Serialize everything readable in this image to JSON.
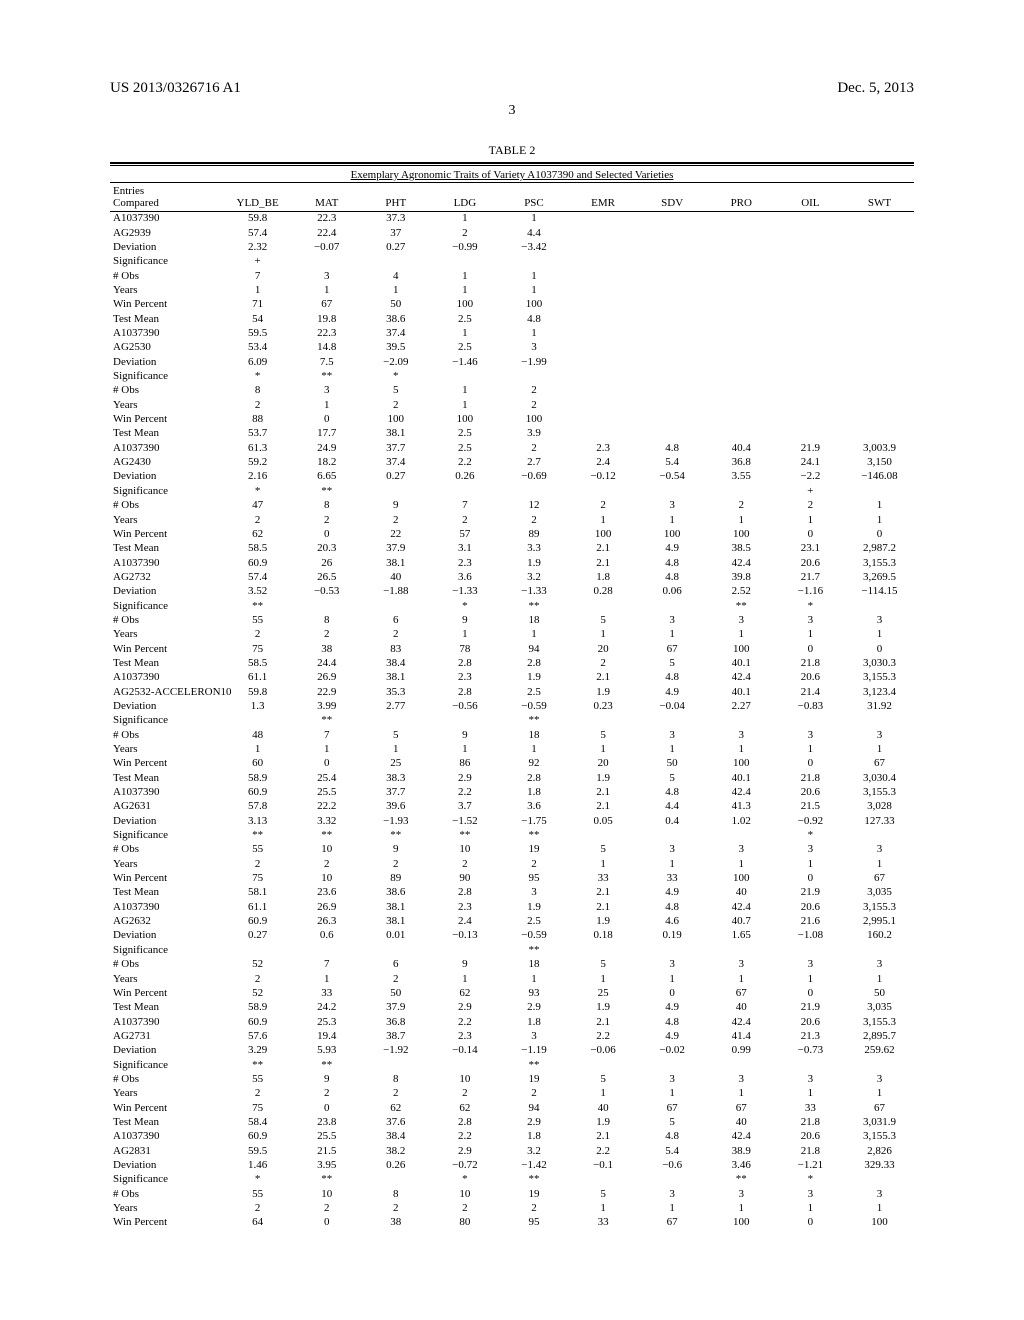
{
  "header": {
    "left": "US 2013/0326716 A1",
    "right": "Dec. 5, 2013",
    "page_number": "3"
  },
  "table": {
    "title": "TABLE 2",
    "subtitle": "Exemplary Agronomic Traits of Variety A1037390 and Selected Varieties",
    "columns": [
      "Entries Compared",
      "YLD_BE",
      "MAT",
      "PHT",
      "LDG",
      "PSC",
      "EMR",
      "SDV",
      "PRO",
      "OIL",
      "SWT"
    ],
    "rows": [
      [
        "A1037390",
        "59.8",
        "22.3",
        "37.3",
        "1",
        "1",
        "",
        "",
        "",
        "",
        ""
      ],
      [
        "AG2939",
        "57.4",
        "22.4",
        "37",
        "2",
        "4.4",
        "",
        "",
        "",
        "",
        ""
      ],
      [
        "Deviation",
        "2.32",
        "−0.07",
        "0.27",
        "−0.99",
        "−3.42",
        "",
        "",
        "",
        "",
        ""
      ],
      [
        "Significance",
        "+",
        "",
        "",
        "",
        "",
        "",
        "",
        "",
        "",
        ""
      ],
      [
        "# Obs",
        "7",
        "3",
        "4",
        "1",
        "1",
        "",
        "",
        "",
        "",
        ""
      ],
      [
        "Years",
        "1",
        "1",
        "1",
        "1",
        "1",
        "",
        "",
        "",
        "",
        ""
      ],
      [
        "Win Percent",
        "71",
        "67",
        "50",
        "100",
        "100",
        "",
        "",
        "",
        "",
        ""
      ],
      [
        "Test Mean",
        "54",
        "19.8",
        "38.6",
        "2.5",
        "4.8",
        "",
        "",
        "",
        "",
        ""
      ],
      [
        "A1037390",
        "59.5",
        "22.3",
        "37.4",
        "1",
        "1",
        "",
        "",
        "",
        "",
        ""
      ],
      [
        "AG2530",
        "53.4",
        "14.8",
        "39.5",
        "2.5",
        "3",
        "",
        "",
        "",
        "",
        ""
      ],
      [
        "Deviation",
        "6.09",
        "7.5",
        "−2.09",
        "−1.46",
        "−1.99",
        "",
        "",
        "",
        "",
        ""
      ],
      [
        "Significance",
        "*",
        "**",
        "*",
        "",
        "",
        "",
        "",
        "",
        "",
        ""
      ],
      [
        "# Obs",
        "8",
        "3",
        "5",
        "1",
        "2",
        "",
        "",
        "",
        "",
        ""
      ],
      [
        "Years",
        "2",
        "1",
        "2",
        "1",
        "2",
        "",
        "",
        "",
        "",
        ""
      ],
      [
        "Win Percent",
        "88",
        "0",
        "100",
        "100",
        "100",
        "",
        "",
        "",
        "",
        ""
      ],
      [
        "Test Mean",
        "53.7",
        "17.7",
        "38.1",
        "2.5",
        "3.9",
        "",
        "",
        "",
        "",
        ""
      ],
      [
        "A1037390",
        "61.3",
        "24.9",
        "37.7",
        "2.5",
        "2",
        "2.3",
        "4.8",
        "40.4",
        "21.9",
        "3,003.9"
      ],
      [
        "AG2430",
        "59.2",
        "18.2",
        "37.4",
        "2.2",
        "2.7",
        "2.4",
        "5.4",
        "36.8",
        "24.1",
        "3,150"
      ],
      [
        "Deviation",
        "2.16",
        "6.65",
        "0.27",
        "0.26",
        "−0.69",
        "−0.12",
        "−0.54",
        "3.55",
        "−2.2",
        "−146.08"
      ],
      [
        "Significance",
        "*",
        "**",
        "",
        "",
        "",
        "",
        "",
        "",
        "+",
        ""
      ],
      [
        "# Obs",
        "47",
        "8",
        "9",
        "7",
        "12",
        "2",
        "3",
        "2",
        "2",
        "1"
      ],
      [
        "Years",
        "2",
        "2",
        "2",
        "2",
        "2",
        "1",
        "1",
        "1",
        "1",
        "1"
      ],
      [
        "Win Percent",
        "62",
        "0",
        "22",
        "57",
        "89",
        "100",
        "100",
        "100",
        "0",
        "0"
      ],
      [
        "Test Mean",
        "58.5",
        "20.3",
        "37.9",
        "3.1",
        "3.3",
        "2.1",
        "4.9",
        "38.5",
        "23.1",
        "2,987.2"
      ],
      [
        "A1037390",
        "60.9",
        "26",
        "38.1",
        "2.3",
        "1.9",
        "2.1",
        "4.8",
        "42.4",
        "20.6",
        "3,155.3"
      ],
      [
        "AG2732",
        "57.4",
        "26.5",
        "40",
        "3.6",
        "3.2",
        "1.8",
        "4.8",
        "39.8",
        "21.7",
        "3,269.5"
      ],
      [
        "Deviation",
        "3.52",
        "−0.53",
        "−1.88",
        "−1.33",
        "−1.33",
        "0.28",
        "0.06",
        "2.52",
        "−1.16",
        "−114.15"
      ],
      [
        "Significance",
        "**",
        "",
        "",
        "*",
        "**",
        "",
        "",
        "**",
        "*",
        ""
      ],
      [
        "# Obs",
        "55",
        "8",
        "6",
        "9",
        "18",
        "5",
        "3",
        "3",
        "3",
        "3"
      ],
      [
        "Years",
        "2",
        "2",
        "2",
        "1",
        "1",
        "1",
        "1",
        "1",
        "1",
        "1"
      ],
      [
        "Win Percent",
        "75",
        "38",
        "83",
        "78",
        "94",
        "20",
        "67",
        "100",
        "0",
        "0"
      ],
      [
        "Test Mean",
        "58.5",
        "24.4",
        "38.4",
        "2.8",
        "2.8",
        "2",
        "5",
        "40.1",
        "21.8",
        "3,030.3"
      ],
      [
        "A1037390",
        "61.1",
        "26.9",
        "38.1",
        "2.3",
        "1.9",
        "2.1",
        "4.8",
        "42.4",
        "20.6",
        "3,155.3"
      ],
      [
        "AG2532-ACCELERON10",
        "59.8",
        "22.9",
        "35.3",
        "2.8",
        "2.5",
        "1.9",
        "4.9",
        "40.1",
        "21.4",
        "3,123.4"
      ],
      [
        "Deviation",
        "1.3",
        "3.99",
        "2.77",
        "−0.56",
        "−0.59",
        "0.23",
        "−0.04",
        "2.27",
        "−0.83",
        "31.92"
      ],
      [
        "Significance",
        "",
        "**",
        "",
        "",
        "**",
        "",
        "",
        "",
        "",
        ""
      ],
      [
        "# Obs",
        "48",
        "7",
        "5",
        "9",
        "18",
        "5",
        "3",
        "3",
        "3",
        "3"
      ],
      [
        "Years",
        "1",
        "1",
        "1",
        "1",
        "1",
        "1",
        "1",
        "1",
        "1",
        "1"
      ],
      [
        "Win Percent",
        "60",
        "0",
        "25",
        "86",
        "92",
        "20",
        "50",
        "100",
        "0",
        "67"
      ],
      [
        "Test Mean",
        "58.9",
        "25.4",
        "38.3",
        "2.9",
        "2.8",
        "1.9",
        "5",
        "40.1",
        "21.8",
        "3,030.4"
      ],
      [
        "A1037390",
        "60.9",
        "25.5",
        "37.7",
        "2.2",
        "1.8",
        "2.1",
        "4.8",
        "42.4",
        "20.6",
        "3,155.3"
      ],
      [
        "AG2631",
        "57.8",
        "22.2",
        "39.6",
        "3.7",
        "3.6",
        "2.1",
        "4.4",
        "41.3",
        "21.5",
        "3,028"
      ],
      [
        "Deviation",
        "3.13",
        "3.32",
        "−1.93",
        "−1.52",
        "−1.75",
        "0.05",
        "0.4",
        "1.02",
        "−0.92",
        "127.33"
      ],
      [
        "Significance",
        "**",
        "**",
        "**",
        "**",
        "**",
        "",
        "",
        "",
        "*",
        ""
      ],
      [
        "# Obs",
        "55",
        "10",
        "9",
        "10",
        "19",
        "5",
        "3",
        "3",
        "3",
        "3"
      ],
      [
        "Years",
        "2",
        "2",
        "2",
        "2",
        "2",
        "1",
        "1",
        "1",
        "1",
        "1"
      ],
      [
        "Win Percent",
        "75",
        "10",
        "89",
        "90",
        "95",
        "33",
        "33",
        "100",
        "0",
        "67"
      ],
      [
        "Test Mean",
        "58.1",
        "23.6",
        "38.6",
        "2.8",
        "3",
        "2.1",
        "4.9",
        "40",
        "21.9",
        "3,035"
      ],
      [
        "A1037390",
        "61.1",
        "26.9",
        "38.1",
        "2.3",
        "1.9",
        "2.1",
        "4.8",
        "42.4",
        "20.6",
        "3,155.3"
      ],
      [
        "AG2632",
        "60.9",
        "26.3",
        "38.1",
        "2.4",
        "2.5",
        "1.9",
        "4.6",
        "40.7",
        "21.6",
        "2,995.1"
      ],
      [
        "Deviation",
        "0.27",
        "0.6",
        "0.01",
        "−0.13",
        "−0.59",
        "0.18",
        "0.19",
        "1.65",
        "−1.08",
        "160.2"
      ],
      [
        "Significance",
        "",
        "",
        "",
        "",
        "**",
        "",
        "",
        "",
        "",
        ""
      ],
      [
        "# Obs",
        "52",
        "7",
        "6",
        "9",
        "18",
        "5",
        "3",
        "3",
        "3",
        "3"
      ],
      [
        "Years",
        "2",
        "1",
        "2",
        "1",
        "1",
        "1",
        "1",
        "1",
        "1",
        "1"
      ],
      [
        "Win Percent",
        "52",
        "33",
        "50",
        "62",
        "93",
        "25",
        "0",
        "67",
        "0",
        "50"
      ],
      [
        "Test Mean",
        "58.9",
        "24.2",
        "37.9",
        "2.9",
        "2.9",
        "1.9",
        "4.9",
        "40",
        "21.9",
        "3,035"
      ],
      [
        "A1037390",
        "60.9",
        "25.3",
        "36.8",
        "2.2",
        "1.8",
        "2.1",
        "4.8",
        "42.4",
        "20.6",
        "3,155.3"
      ],
      [
        "AG2731",
        "57.6",
        "19.4",
        "38.7",
        "2.3",
        "3",
        "2.2",
        "4.9",
        "41.4",
        "21.3",
        "2,895.7"
      ],
      [
        "Deviation",
        "3.29",
        "5.93",
        "−1.92",
        "−0.14",
        "−1.19",
        "−0.06",
        "−0.02",
        "0.99",
        "−0.73",
        "259.62"
      ],
      [
        "Significance",
        "**",
        "**",
        "",
        "",
        "**",
        "",
        "",
        "",
        "",
        ""
      ],
      [
        "# Obs",
        "55",
        "9",
        "8",
        "10",
        "19",
        "5",
        "3",
        "3",
        "3",
        "3"
      ],
      [
        "Years",
        "2",
        "2",
        "2",
        "2",
        "2",
        "1",
        "1",
        "1",
        "1",
        "1"
      ],
      [
        "Win Percent",
        "75",
        "0",
        "62",
        "62",
        "94",
        "40",
        "67",
        "67",
        "33",
        "67"
      ],
      [
        "Test Mean",
        "58.4",
        "23.8",
        "37.6",
        "2.8",
        "2.9",
        "1.9",
        "5",
        "40",
        "21.8",
        "3,031.9"
      ],
      [
        "A1037390",
        "60.9",
        "25.5",
        "38.4",
        "2.2",
        "1.8",
        "2.1",
        "4.8",
        "42.4",
        "20.6",
        "3,155.3"
      ],
      [
        "AG2831",
        "59.5",
        "21.5",
        "38.2",
        "2.9",
        "3.2",
        "2.2",
        "5.4",
        "38.9",
        "21.8",
        "2,826"
      ],
      [
        "Deviation",
        "1.46",
        "3.95",
        "0.26",
        "−0.72",
        "−1.42",
        "−0.1",
        "−0.6",
        "3.46",
        "−1.21",
        "329.33"
      ],
      [
        "Significance",
        "*",
        "**",
        "",
        "*",
        "**",
        "",
        "",
        "**",
        "*",
        ""
      ],
      [
        "# Obs",
        "55",
        "10",
        "8",
        "10",
        "19",
        "5",
        "3",
        "3",
        "3",
        "3"
      ],
      [
        "Years",
        "2",
        "2",
        "2",
        "2",
        "2",
        "1",
        "1",
        "1",
        "1",
        "1"
      ],
      [
        "Win Percent",
        "64",
        "0",
        "38",
        "80",
        "95",
        "33",
        "67",
        "100",
        "0",
        "100"
      ]
    ]
  }
}
